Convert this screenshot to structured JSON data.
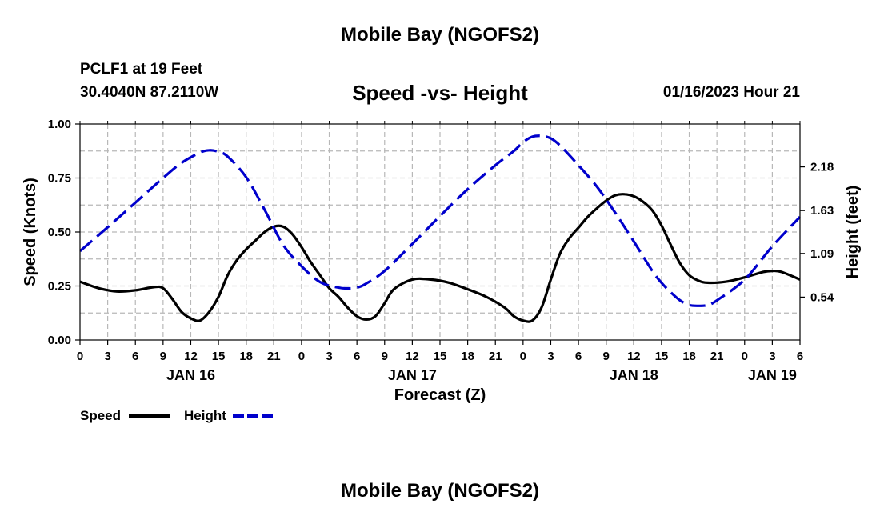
{
  "header": {
    "title": "Mobile Bay (NGOFS2)",
    "station": "PCLF1 at 19 Feet",
    "coords": "30.4040N  87.2110W",
    "subtitle": "Speed -vs- Height",
    "timestamp": "01/16/2023 Hour 21"
  },
  "footer": {
    "title": "Mobile Bay (NGOFS2)"
  },
  "chart_data": {
    "type": "line",
    "title": "Speed -vs- Height",
    "xlabel": "Forecast (Z)",
    "ylabel": "Speed (Knots)",
    "y2label": "Height (feet)",
    "xlim": [
      0,
      78
    ],
    "ylim": [
      0,
      1.0
    ],
    "y2lim": [
      0.0,
      2.72
    ],
    "x_ticks": [
      0,
      3,
      6,
      9,
      12,
      15,
      18,
      21,
      24,
      27,
      30,
      33,
      36,
      39,
      42,
      45,
      48,
      51,
      54,
      57,
      60,
      63,
      66,
      69,
      72,
      75,
      78
    ],
    "x_tick_labels": [
      "0",
      "3",
      "6",
      "9",
      "12",
      "15",
      "18",
      "21",
      "0",
      "3",
      "6",
      "9",
      "12",
      "15",
      "18",
      "21",
      "0",
      "3",
      "6",
      "9",
      "12",
      "15",
      "18",
      "21",
      "0",
      "3",
      "6"
    ],
    "date_labels": [
      {
        "x": 12,
        "label": "JAN 16"
      },
      {
        "x": 36,
        "label": "JAN 17"
      },
      {
        "x": 60,
        "label": "JAN 18"
      },
      {
        "x": 75,
        "label": "JAN 19"
      }
    ],
    "y_ticks": [
      0,
      0.25,
      0.5,
      0.75,
      1.0
    ],
    "y_tick_labels": [
      "0.00",
      "0.25",
      "0.50",
      "0.75",
      "1.00"
    ],
    "y2_ticks": [
      0.54,
      1.09,
      1.63,
      2.18
    ],
    "y2_tick_labels": [
      "0.54",
      "1.09",
      "1.63",
      "2.18"
    ],
    "legend": {
      "placement": "bottom-left",
      "items": [
        "Speed",
        "Height"
      ]
    },
    "series": [
      {
        "name": "Speed",
        "axis": "left",
        "color": "#000000",
        "dash": "solid",
        "x": [
          0,
          2,
          4,
          6,
          8,
          9,
          10,
          11,
          12,
          13,
          14,
          15,
          16,
          17,
          18,
          19,
          20,
          21,
          22,
          23,
          24,
          25,
          26,
          27,
          28,
          29,
          30,
          31,
          32,
          33,
          34,
          36,
          38,
          40,
          42,
          44,
          46,
          47,
          48,
          49,
          50,
          51,
          52,
          53,
          54,
          55,
          56,
          57,
          58,
          59,
          60,
          61,
          62,
          63,
          64,
          65,
          66,
          67,
          68,
          70,
          72,
          74,
          75,
          76,
          78
        ],
        "values": [
          0.27,
          0.24,
          0.225,
          0.23,
          0.245,
          0.24,
          0.19,
          0.13,
          0.1,
          0.09,
          0.13,
          0.2,
          0.3,
          0.37,
          0.42,
          0.46,
          0.5,
          0.525,
          0.525,
          0.49,
          0.43,
          0.36,
          0.3,
          0.24,
          0.2,
          0.15,
          0.11,
          0.095,
          0.11,
          0.17,
          0.235,
          0.28,
          0.28,
          0.265,
          0.235,
          0.2,
          0.15,
          0.11,
          0.09,
          0.09,
          0.15,
          0.28,
          0.4,
          0.47,
          0.52,
          0.57,
          0.61,
          0.645,
          0.67,
          0.675,
          0.665,
          0.64,
          0.6,
          0.53,
          0.44,
          0.355,
          0.3,
          0.275,
          0.265,
          0.27,
          0.29,
          0.315,
          0.32,
          0.315,
          0.28
        ]
      },
      {
        "name": "Height",
        "axis": "right",
        "color": "#0000cc",
        "dash": "dashed",
        "x": [
          0,
          3,
          6,
          9,
          11,
          13,
          14,
          15,
          16,
          18,
          20,
          22,
          24,
          26,
          28,
          29,
          30,
          31,
          33,
          36,
          39,
          42,
          45,
          47,
          48,
          49,
          50,
          51,
          52,
          54,
          56,
          58,
          60,
          62,
          63,
          64,
          65,
          66,
          67,
          68,
          69,
          72,
          75,
          78
        ],
        "values": [
          1.12,
          1.42,
          1.73,
          2.04,
          2.23,
          2.36,
          2.39,
          2.37,
          2.31,
          2.05,
          1.64,
          1.2,
          0.93,
          0.73,
          0.66,
          0.65,
          0.66,
          0.71,
          0.87,
          1.21,
          1.56,
          1.9,
          2.2,
          2.38,
          2.49,
          2.56,
          2.57,
          2.54,
          2.45,
          2.2,
          1.93,
          1.6,
          1.24,
          0.87,
          0.72,
          0.6,
          0.5,
          0.44,
          0.43,
          0.44,
          0.5,
          0.76,
          1.18,
          1.55
        ]
      }
    ]
  }
}
